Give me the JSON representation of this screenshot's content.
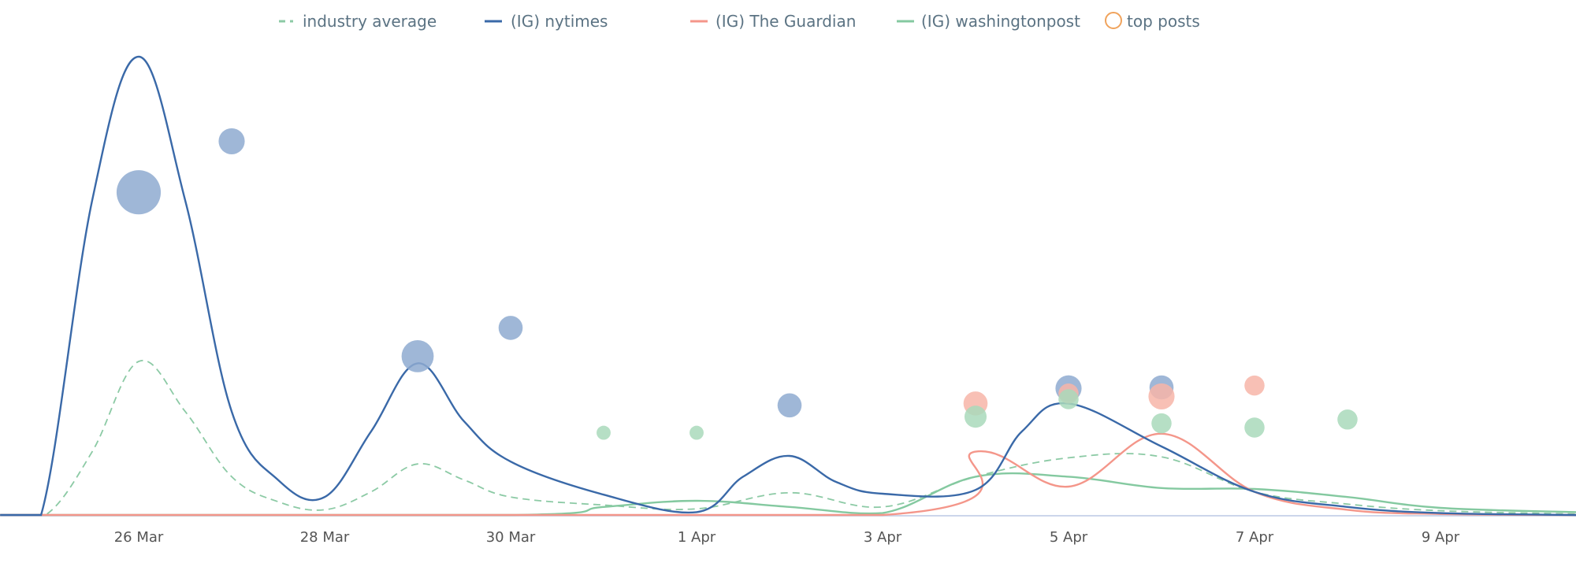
{
  "chart_data": {
    "type": "line",
    "title": "",
    "xlabel": "",
    "ylabel": "",
    "x_unit": "days since 26 Mar",
    "xlim": [
      -1.49,
      15.46
    ],
    "ylim": [
      0,
      100
    ],
    "grid": false,
    "legend_position": "top-center",
    "x_ticks": [
      {
        "x": 0,
        "label": "26 Mar"
      },
      {
        "x": 2,
        "label": "28 Mar"
      },
      {
        "x": 4,
        "label": "30 Mar"
      },
      {
        "x": 6,
        "label": "1 Apr"
      },
      {
        "x": 8,
        "label": "3 Apr"
      },
      {
        "x": 10,
        "label": "5 Apr"
      },
      {
        "x": 12,
        "label": "7 Apr"
      },
      {
        "x": 14,
        "label": "9 Apr"
      }
    ],
    "legend": [
      {
        "label": "industry average",
        "kind": "dashed",
        "color": "#8ccaa5"
      },
      {
        "label": "(IG) nytimes",
        "kind": "line",
        "color": "#3a69a8"
      },
      {
        "label": "(IG) The Guardian",
        "kind": "line",
        "color": "#f4968a"
      },
      {
        "label": "(IG) washingtonpost",
        "kind": "line",
        "color": "#84c9a0"
      },
      {
        "label": "top posts",
        "kind": "circle",
        "color": "#f0a35c"
      }
    ],
    "series": [
      {
        "name": "industry average",
        "color": "#8ccaa5",
        "dashed": true,
        "points": [
          [
            -1.49,
            0
          ],
          [
            -1,
            0
          ],
          [
            -0.5,
            13.4
          ],
          [
            0,
            32.5
          ],
          [
            0.5,
            21.9
          ],
          [
            1,
            8.1
          ],
          [
            1.5,
            2.8
          ],
          [
            2,
            1.1
          ],
          [
            2.5,
            4.9
          ],
          [
            3,
            10.8
          ],
          [
            3.5,
            7.4
          ],
          [
            4,
            3.8
          ],
          [
            5,
            2.1
          ],
          [
            6,
            1.3
          ],
          [
            7,
            4.7
          ],
          [
            8,
            1.7
          ],
          [
            9,
            8.1
          ],
          [
            10,
            12.1
          ],
          [
            11,
            12.3
          ],
          [
            12,
            4.9
          ],
          [
            13,
            2.3
          ],
          [
            14,
            0.9
          ],
          [
            15.46,
            0.2
          ]
        ]
      },
      {
        "name": "(IG) washingtonpost",
        "color": "#84c9a0",
        "dashed": false,
        "points": [
          [
            -1.49,
            0
          ],
          [
            4,
            0
          ],
          [
            5,
            1.7
          ],
          [
            6,
            3
          ],
          [
            7,
            1.7
          ],
          [
            8,
            0.4
          ],
          [
            9,
            8.1
          ],
          [
            10,
            8.1
          ],
          [
            11,
            5.7
          ],
          [
            12,
            5.5
          ],
          [
            13,
            3.8
          ],
          [
            14,
            1.5
          ],
          [
            15.46,
            0.6
          ]
        ]
      },
      {
        "name": "(IG) The Guardian",
        "color": "#f4968a",
        "dashed": false,
        "points": [
          [
            -1.49,
            0
          ],
          [
            8,
            0
          ],
          [
            9,
            13.4
          ],
          [
            10,
            6
          ],
          [
            11,
            17.2
          ],
          [
            12,
            4.9
          ],
          [
            13,
            1.1
          ],
          [
            14,
            0.2
          ],
          [
            15.46,
            0
          ]
        ]
      },
      {
        "name": "(IG) nytimes",
        "color": "#3a69a8",
        "dashed": false,
        "points": [
          [
            -1.49,
            0
          ],
          [
            -1.05,
            0
          ],
          [
            -0.5,
            66.6
          ],
          [
            0,
            97
          ],
          [
            0.5,
            66.6
          ],
          [
            1,
            21.9
          ],
          [
            1.5,
            7.4
          ],
          [
            2,
            3.8
          ],
          [
            2.5,
            17.7
          ],
          [
            3,
            32.1
          ],
          [
            3.5,
            19.8
          ],
          [
            4,
            11.3
          ],
          [
            5,
            4.3
          ],
          [
            6,
            0.6
          ],
          [
            6.5,
            8.1
          ],
          [
            7,
            12.5
          ],
          [
            7.5,
            7
          ],
          [
            8,
            4.5
          ],
          [
            9,
            5.3
          ],
          [
            9.5,
            17.7
          ],
          [
            10,
            23.6
          ],
          [
            11,
            14.5
          ],
          [
            12,
            4.9
          ],
          [
            13,
            1.7
          ],
          [
            14,
            0.4
          ],
          [
            15.46,
            0
          ]
        ]
      }
    ],
    "top_posts": [
      {
        "series": "(IG) nytimes",
        "color": "#8eaad0",
        "points": [
          [
            0,
            68.3,
            22
          ],
          [
            1,
            79.1,
            13
          ],
          [
            3,
            33.6,
            16
          ],
          [
            4,
            39.6,
            12
          ],
          [
            7,
            23.2,
            12
          ],
          [
            10,
            26.8,
            13
          ],
          [
            11,
            27.0,
            12
          ]
        ]
      },
      {
        "series": "(IG) The Guardian",
        "color": "#f7b5a8",
        "points": [
          [
            9,
            23.6,
            12
          ],
          [
            10,
            25.7,
            10
          ],
          [
            11,
            25.1,
            13
          ],
          [
            12,
            27.4,
            10
          ]
        ]
      },
      {
        "series": "(IG) washingtonpost",
        "color": "#a9d9bb",
        "points": [
          [
            5,
            17.4,
            7
          ],
          [
            6,
            17.4,
            7
          ],
          [
            9,
            20.8,
            11
          ],
          [
            10,
            24.5,
            10
          ],
          [
            11,
            19.4,
            10
          ],
          [
            12,
            18.5,
            10
          ],
          [
            13,
            20.2,
            10
          ]
        ]
      }
    ]
  }
}
